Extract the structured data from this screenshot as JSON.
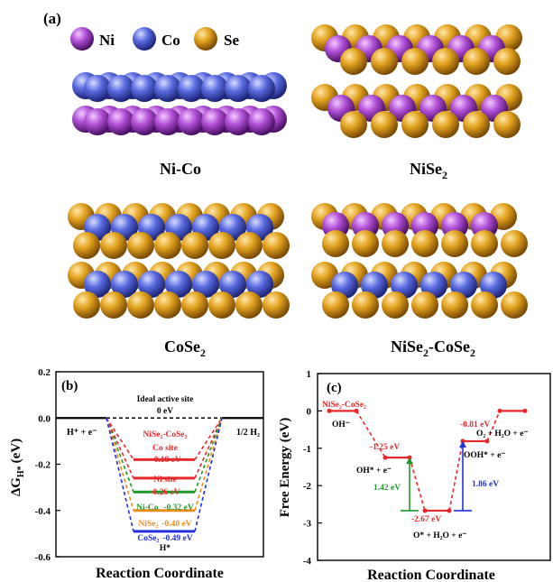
{
  "panel_a": {
    "label": "(a)",
    "legend": [
      {
        "element": "Ni",
        "color": "#b04fd6"
      },
      {
        "element": "Co",
        "color": "#5a6be0"
      },
      {
        "element": "Se",
        "color": "#e2a21f"
      }
    ],
    "structures": [
      {
        "title": "Ni-Co",
        "sub": ""
      },
      {
        "title": "NiSe",
        "sub": "2"
      },
      {
        "title": "CoSe",
        "sub": "2"
      },
      {
        "title": "NiSe",
        "sub": "2",
        "suffix": "-CoSe",
        "suffix_sub": "2"
      }
    ]
  },
  "panel_b": {
    "chart_data": {
      "type": "line",
      "panel_label": "(b)",
      "ylabel": "ΔG",
      "ylabel_sub": "H*",
      "ylabel_unit": "(eV)",
      "xlabel": "Reaction Coordinate",
      "ylim": [
        -0.6,
        0.2
      ],
      "yticks": [
        "0.2",
        "0.0",
        "-0.2",
        "-0.4",
        "-0.6"
      ],
      "start_label": "H⁺ + e⁻",
      "end_label": "1/2 H₂",
      "mid_label": "H*",
      "ideal_site": {
        "label1": "Ideal active site",
        "label2": "0 eV",
        "value": 0.0
      },
      "series": [
        {
          "name": "NiSe₂-CoSe₂",
          "site": "Co site",
          "energy_label": "−0.18 eV",
          "value": -0.18,
          "color": "#e8292b"
        },
        {
          "name": "Ni site",
          "energy_label": "-0.26 eV",
          "value": -0.26,
          "color": "#e8292b"
        },
        {
          "name": "Ni-Co",
          "energy_label": "-0.32 eV",
          "value": -0.32,
          "color": "#1f9a2a"
        },
        {
          "name": "NiSe₂",
          "energy_label": "-0.40 eV",
          "value": -0.4,
          "color": "#f08c1c"
        },
        {
          "name": "CoSe₂",
          "energy_label": "-0.49 eV",
          "value": -0.49,
          "color": "#2230e0"
        }
      ]
    }
  },
  "panel_c": {
    "chart_data": {
      "type": "line",
      "panel_label": "(c)",
      "ylabel": "Free Energy (eV)",
      "xlabel": "Reaction Coordinate",
      "ylim": [
        -4,
        1
      ],
      "yticks": [
        "1",
        "0",
        "-1",
        "-2",
        "-3",
        "-4"
      ],
      "series_name": "NiSe₂-CoSe₂",
      "steps": [
        {
          "label": "OH⁻",
          "value": 0
        },
        {
          "label": "OH* + e⁻",
          "value": -1.25
        },
        {
          "label": "O* + H₂O + e⁻",
          "value": -2.67
        },
        {
          "label": "OOH* + e⁻",
          "value": -0.81
        },
        {
          "label": "O₂ + H₂O + e⁻",
          "value": 0
        }
      ],
      "energy_labels": [
        "-1.25 eV",
        "-2.67 eV",
        "-0.81 eV"
      ],
      "barriers": [
        {
          "label": "1.42 eV",
          "color": "#1f9a2a"
        },
        {
          "label": "1.86 eV",
          "color": "#2230e0"
        }
      ]
    }
  }
}
